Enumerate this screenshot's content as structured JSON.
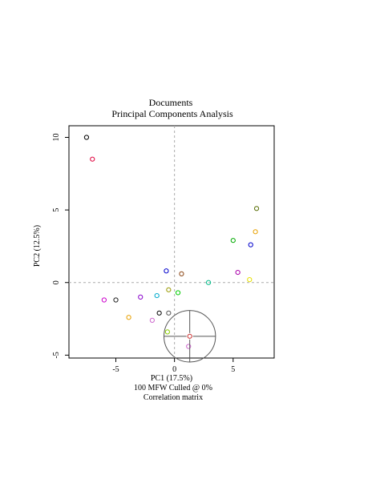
{
  "chart_data": {
    "type": "scatter",
    "title": "Documents",
    "subtitle": "Principal Components Analysis",
    "xlabel": "PC1 (17.5%)",
    "ylabel": "PC2 (12.5%)",
    "caption_lines": [
      "100 MFW  Culled @ 0%",
      "Correlation matrix"
    ],
    "xlim": [
      -9.0,
      8.5
    ],
    "ylim": [
      -5.2,
      10.8
    ],
    "x_ticks": [
      {
        "value": -5,
        "label": "-5"
      },
      {
        "value": 0,
        "label": "0"
      },
      {
        "value": 5,
        "label": "5"
      }
    ],
    "y_ticks": [
      {
        "value": -5,
        "label": "-5"
      },
      {
        "value": 0,
        "label": "0"
      },
      {
        "value": 5,
        "label": "5"
      },
      {
        "value": 10,
        "label": "10"
      }
    ],
    "grid": false,
    "reference_lines": {
      "x": 0,
      "y": 0,
      "style": "dashed",
      "color": "#aaaaaa"
    },
    "points": [
      {
        "x": -7.5,
        "y": 10.0,
        "color": "#000000"
      },
      {
        "x": -7.0,
        "y": 8.5,
        "color": "#e0003c"
      },
      {
        "x": 7.0,
        "y": 5.1,
        "color": "#556b00"
      },
      {
        "x": 6.9,
        "y": 3.5,
        "color": "#e8a000"
      },
      {
        "x": 5.0,
        "y": 2.9,
        "color": "#00aa00"
      },
      {
        "x": 6.5,
        "y": 2.6,
        "color": "#0000cc"
      },
      {
        "x": -0.7,
        "y": 0.8,
        "color": "#0000cc"
      },
      {
        "x": 0.6,
        "y": 0.6,
        "color": "#8b4513"
      },
      {
        "x": 5.4,
        "y": 0.7,
        "color": "#aa00aa"
      },
      {
        "x": 6.4,
        "y": 0.2,
        "color": "#e8e000"
      },
      {
        "x": 2.9,
        "y": 0.0,
        "color": "#00bb88"
      },
      {
        "x": -0.5,
        "y": -0.5,
        "color": "#999900"
      },
      {
        "x": 0.3,
        "y": -0.7,
        "color": "#00cc00"
      },
      {
        "x": -1.5,
        "y": -0.9,
        "color": "#00aacc"
      },
      {
        "x": -2.9,
        "y": -1.0,
        "color": "#8800cc"
      },
      {
        "x": -6.0,
        "y": -1.2,
        "color": "#cc00cc"
      },
      {
        "x": -5.0,
        "y": -1.2,
        "color": "#222222"
      },
      {
        "x": -1.3,
        "y": -2.1,
        "color": "#000000"
      },
      {
        "x": -0.5,
        "y": -2.1,
        "color": "#555555"
      },
      {
        "x": -3.9,
        "y": -2.4,
        "color": "#e8a000"
      },
      {
        "x": -1.9,
        "y": -2.6,
        "color": "#cc66cc"
      },
      {
        "x": -0.6,
        "y": -3.4,
        "color": "#88cc00"
      },
      {
        "x": 1.3,
        "y": -3.7,
        "color": "#cc3333"
      },
      {
        "x": 1.2,
        "y": -4.4,
        "color": "#cc66cc"
      }
    ],
    "lens": {
      "center": [
        1.3,
        -3.7
      ],
      "radius_x": 2.2,
      "radius_y": 1.8
    }
  }
}
